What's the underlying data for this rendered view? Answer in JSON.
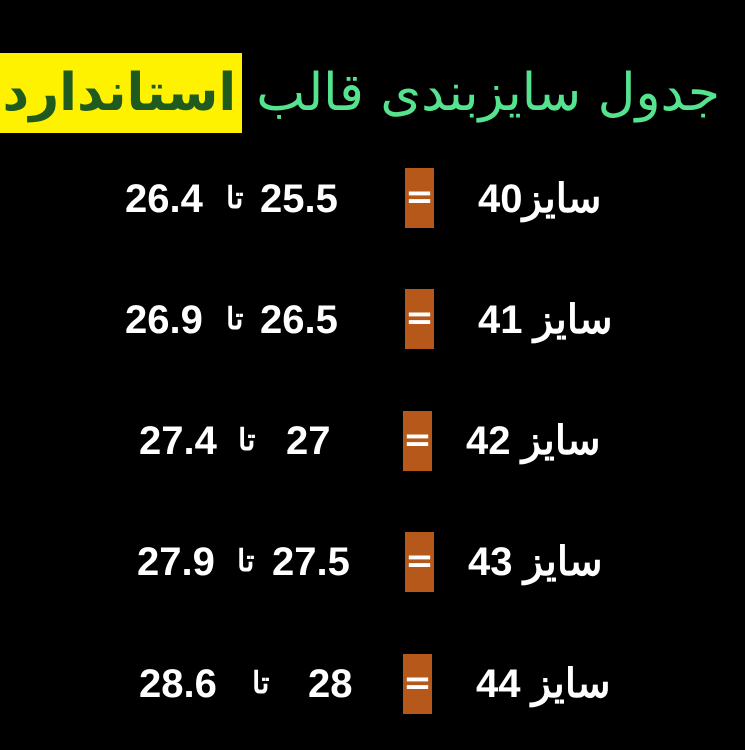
{
  "title": {
    "main": "جدول سایزبندی قالب",
    "highlight": "استاندارد"
  },
  "colors": {
    "title_text": "#55e38f",
    "highlight_bg": "#fff200",
    "highlight_text": "#1f5a1f",
    "equals_box": "#b5581a"
  },
  "connector": "تا",
  "equals": "=",
  "rows": [
    {
      "size": "سایز40",
      "from": "25.5",
      "to": "26.4"
    },
    {
      "size": "سایز 41",
      "from": "26.5",
      "to": "26.9"
    },
    {
      "size": "سایز 42",
      "from": "27",
      "to": "27.4"
    },
    {
      "size": "سایز 43",
      "from": "27.5",
      "to": "27.9"
    },
    {
      "size": "سایز 44",
      "from": "28",
      "to": "28.6"
    }
  ]
}
